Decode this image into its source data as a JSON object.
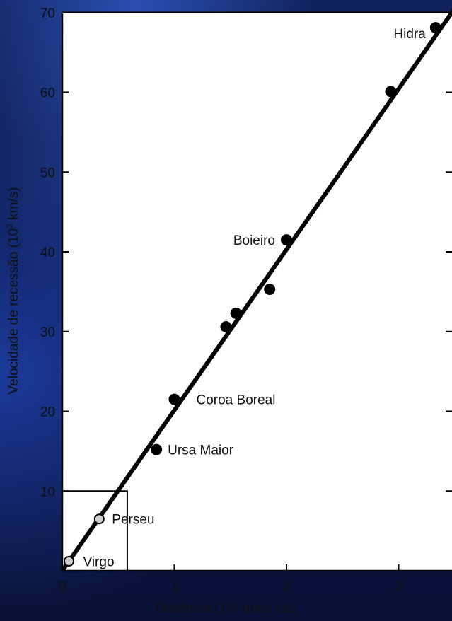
{
  "chart_data": {
    "type": "scatter",
    "xlabel": {
      "prefix": "Distância (10",
      "sup": "9",
      "suffix": " anos luz)"
    },
    "ylabel": {
      "prefix": "Velocidade de recessão (10",
      "sup": "3",
      "suffix": " km/s)"
    },
    "xlim": [
      0,
      3.5
    ],
    "ylim": [
      0,
      70
    ],
    "x_ticks": [
      0,
      1,
      2,
      3
    ],
    "y_ticks": [
      10,
      20,
      30,
      40,
      50,
      60,
      70
    ],
    "points": [
      {
        "x": 0.06,
        "y": 1.2,
        "label": "Virgo",
        "style": "open"
      },
      {
        "x": 0.33,
        "y": 6.5,
        "label": "Perseu",
        "style": "open"
      },
      {
        "x": 0.84,
        "y": 15.2,
        "label": "Ursa Maior",
        "style": "filled"
      },
      {
        "x": 1.0,
        "y": 21.5,
        "label": "Coroa Boreal",
        "style": "filled"
      },
      {
        "x": 1.46,
        "y": 30.6,
        "label": "",
        "style": "filled"
      },
      {
        "x": 1.55,
        "y": 32.3,
        "label": "",
        "style": "filled"
      },
      {
        "x": 1.85,
        "y": 35.3,
        "label": "",
        "style": "filled"
      },
      {
        "x": 2.0,
        "y": 41.5,
        "label": "Boieiro",
        "style": "filled"
      },
      {
        "x": 2.93,
        "y": 60.1,
        "label": "",
        "style": "filled"
      },
      {
        "x": 3.33,
        "y": 68.1,
        "label": "Hidra",
        "style": "filled"
      }
    ],
    "fit_line": {
      "x": [
        0,
        3.5
      ],
      "y": [
        0,
        70.5
      ]
    },
    "inset_box": {
      "x": [
        0,
        0.58
      ],
      "y": [
        0,
        10
      ]
    },
    "grid": false
  },
  "colors": {
    "marker": "#000000",
    "open_marker_fill": "#cfcfcf",
    "line": "#000000",
    "background": "#0b1640",
    "panel": "#ffffff"
  }
}
